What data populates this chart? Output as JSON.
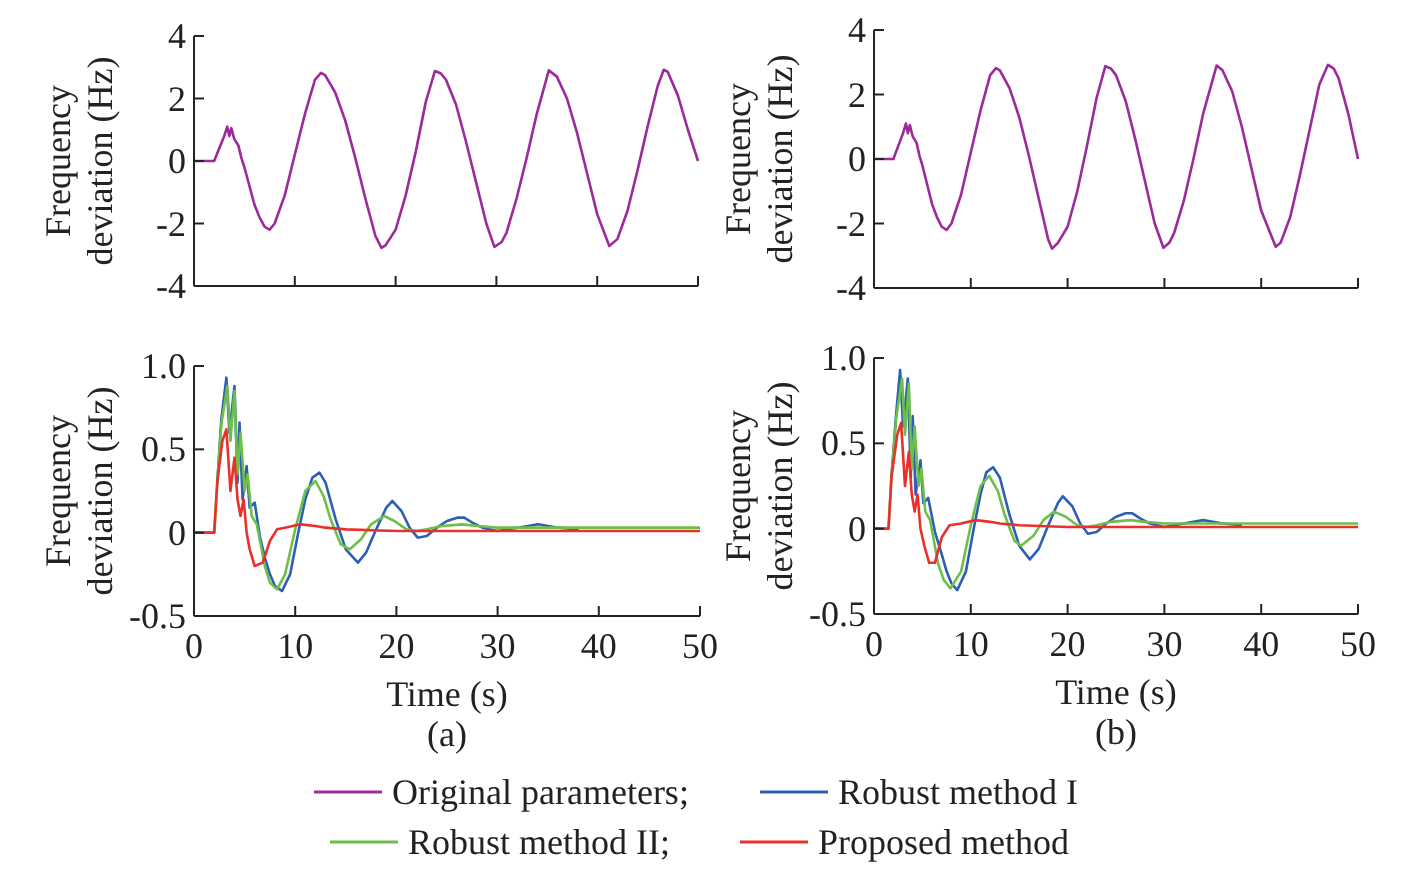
{
  "chart_data": [
    {
      "type": "line",
      "ylabel": "Frequency deviation (Hz)",
      "xlim": [
        0,
        50
      ],
      "xticks": [
        {
          "value": 0,
          "label": null
        },
        {
          "value": 10,
          "label": null
        },
        {
          "value": 20,
          "label": null
        },
        {
          "value": 30,
          "label": null
        },
        {
          "value": 40,
          "label": null
        },
        {
          "value": 50,
          "label": null
        }
      ],
      "ylim": [
        -4,
        4
      ],
      "yticks": [
        -4,
        -2,
        0,
        2,
        4
      ],
      "tick_labels": "y",
      "legend": "bottom",
      "grid": false,
      "series": [
        {
          "name": "Original parameters;",
          "color": "#9b2a9b",
          "x": [
            0,
            2,
            2.5,
            3,
            3.3,
            3.5,
            3.7,
            4,
            4.2,
            4.4,
            4.7,
            5,
            5.5,
            6,
            6.5,
            7,
            7.5,
            8,
            9,
            10,
            11,
            12,
            12.6,
            13,
            14,
            15,
            16,
            17,
            18,
            18.6,
            19,
            20,
            21,
            22,
            23,
            23.9,
            24.5,
            25,
            26,
            27,
            28,
            29,
            29.8,
            30.5,
            31,
            32,
            33,
            34,
            35.2,
            36,
            37,
            38,
            39,
            40,
            41.2,
            42,
            43,
            44,
            45,
            46,
            46.6,
            47,
            48,
            49,
            50
          ],
          "values": [
            0,
            0,
            0.4,
            0.8,
            1.1,
            0.8,
            1.05,
            0.7,
            0.6,
            0.5,
            0.1,
            -0.2,
            -0.8,
            -1.4,
            -1.8,
            -2.1,
            -2.2,
            -2.0,
            -1.1,
            0.2,
            1.5,
            2.6,
            2.82,
            2.75,
            2.2,
            1.3,
            0.1,
            -1.2,
            -2.4,
            -2.78,
            -2.7,
            -2.2,
            -1.1,
            0.3,
            1.9,
            2.88,
            2.8,
            2.6,
            1.8,
            0.6,
            -0.7,
            -2.0,
            -2.75,
            -2.6,
            -2.3,
            -1.2,
            0.1,
            1.5,
            2.9,
            2.7,
            2.0,
            0.9,
            -0.4,
            -1.7,
            -2.72,
            -2.5,
            -1.6,
            -0.3,
            1.1,
            2.4,
            2.92,
            2.85,
            2.1,
            1.0,
            0
          ]
        }
      ]
    },
    {
      "type": "line",
      "xlabel": "Time (s)",
      "ylabel": "Frequency deviation (Hz)",
      "annotations": [
        "(a)"
      ],
      "xlim": [
        0,
        50
      ],
      "xticks": [
        0,
        10,
        20,
        30,
        40,
        50
      ],
      "ylim": [
        -0.5,
        1
      ],
      "yticks": [
        -0.5,
        0,
        0.5,
        {
          "value": 1,
          "label": "1.0"
        }
      ],
      "legend": "bottom",
      "grid": false,
      "series": [
        {
          "name": "Robust method I",
          "color": "#2e5fb5",
          "x": [
            2.3,
            2.7,
            3.2,
            3.5,
            4,
            4.3,
            4.5,
            4.8,
            5.2,
            5.5,
            6,
            6.5,
            7,
            7.5,
            8,
            8.7,
            9.5,
            10.3,
            11,
            11.7,
            12.4,
            13,
            14,
            15,
            16.2,
            17,
            18,
            19,
            19.6,
            20.5,
            21.3,
            22.1,
            23,
            24,
            25,
            26,
            26.7,
            27.5,
            28.5,
            30,
            32,
            34,
            36,
            38
          ],
          "values": [
            0.3,
            0.68,
            0.93,
            0.6,
            0.88,
            0.3,
            0.66,
            0.2,
            0.4,
            0.15,
            0.18,
            -0.02,
            -0.15,
            -0.25,
            -0.32,
            -0.35,
            -0.25,
            0,
            0.2,
            0.33,
            0.36,
            0.3,
            0.08,
            -0.1,
            -0.18,
            -0.12,
            0.02,
            0.15,
            0.19,
            0.13,
            0.03,
            -0.03,
            -0.02,
            0.03,
            0.07,
            0.09,
            0.09,
            0.06,
            0.03,
            0.01,
            0.03,
            0.05,
            0.03,
            0.02
          ]
        },
        {
          "name": "Robust method II;",
          "color": "#6cc04a",
          "x": [
            0,
            2,
            2.3,
            2.7,
            3.3,
            3.6,
            4,
            4.3,
            4.6,
            5,
            5.3,
            5.7,
            6.2,
            7,
            7.5,
            8.2,
            9,
            10,
            11,
            12,
            12.8,
            13.5,
            14.5,
            15.4,
            16.5,
            17.5,
            18.8,
            19.8,
            21,
            22,
            23,
            24.5,
            26.5,
            28,
            30,
            35,
            40,
            45,
            50
          ],
          "values": [
            0,
            0,
            0.3,
            0.65,
            0.88,
            0.55,
            0.85,
            0.35,
            0.6,
            0.25,
            0.35,
            0.1,
            0.05,
            -0.2,
            -0.3,
            -0.34,
            -0.25,
            0.02,
            0.25,
            0.31,
            0.22,
            0.08,
            -0.07,
            -0.1,
            -0.04,
            0.05,
            0.1,
            0.07,
            0.02,
            0.01,
            0.02,
            0.04,
            0.05,
            0.04,
            0.03,
            0.03,
            0.03,
            0.03,
            0.03
          ]
        },
        {
          "name": "Proposed method",
          "color": "#e8312a",
          "x": [
            0,
            2,
            2.3,
            2.8,
            3.2,
            3.6,
            4,
            4.3,
            4.6,
            4.9,
            5.2,
            5.5,
            6,
            6.8,
            7.5,
            8.2,
            9,
            10.5,
            12,
            13,
            15,
            20,
            25,
            30,
            40,
            50
          ],
          "values": [
            0,
            0,
            0.3,
            0.55,
            0.62,
            0.25,
            0.45,
            0.2,
            0.1,
            0.2,
            0,
            -0.1,
            -0.2,
            -0.18,
            -0.05,
            0.02,
            0.03,
            0.05,
            0.04,
            0.03,
            0.02,
            0.01,
            0.01,
            0.01,
            0.01,
            0.01
          ]
        }
      ]
    },
    {
      "type": "line",
      "ylabel": "Frequency deviation (Hz)",
      "xlim": [
        0,
        50
      ],
      "xticks": [
        {
          "value": 0,
          "label": null
        },
        {
          "value": 10,
          "label": null
        },
        {
          "value": 20,
          "label": null
        },
        {
          "value": 30,
          "label": null
        },
        {
          "value": 40,
          "label": null
        },
        {
          "value": 50,
          "label": null
        }
      ],
      "ylim": [
        -4,
        4
      ],
      "yticks": [
        -4,
        -2,
        0,
        2,
        4
      ],
      "tick_labels": "y",
      "legend": "bottom",
      "grid": false,
      "series": [
        {
          "name": "Original parameters;",
          "color": "#9b2a9b",
          "x": [
            0,
            2,
            2.5,
            3,
            3.3,
            3.5,
            3.7,
            4,
            4.2,
            4.4,
            4.7,
            5,
            5.5,
            6,
            6.5,
            7,
            7.5,
            8,
            9,
            10,
            11,
            12,
            12.6,
            13,
            14,
            15,
            16,
            17,
            18,
            18.4,
            19,
            20,
            21,
            22,
            23,
            23.9,
            24.5,
            25,
            26,
            27,
            28,
            29,
            29.9,
            30.5,
            31,
            32,
            33,
            34,
            35.4,
            36,
            37,
            38,
            39,
            40,
            41.5,
            42,
            43,
            44,
            45,
            46,
            46.9,
            47.5,
            48,
            49,
            50
          ],
          "values": [
            0,
            0,
            0.4,
            0.8,
            1.1,
            0.8,
            1.05,
            0.7,
            0.6,
            0.5,
            0.1,
            -0.2,
            -0.8,
            -1.4,
            -1.8,
            -2.1,
            -2.2,
            -2.0,
            -1.1,
            0.2,
            1.5,
            2.6,
            2.82,
            2.75,
            2.2,
            1.3,
            0.1,
            -1.2,
            -2.5,
            -2.78,
            -2.6,
            -2.1,
            -1.0,
            0.4,
            1.9,
            2.88,
            2.8,
            2.6,
            1.8,
            0.6,
            -0.7,
            -2.0,
            -2.75,
            -2.6,
            -2.3,
            -1.3,
            0,
            1.4,
            2.9,
            2.75,
            2.1,
            1.0,
            -0.3,
            -1.6,
            -2.72,
            -2.6,
            -1.8,
            -0.5,
            0.9,
            2.3,
            2.92,
            2.8,
            2.5,
            1.4,
            0
          ]
        }
      ]
    },
    {
      "type": "line",
      "xlabel": "Time (s)",
      "ylabel": "Frequency deviation (Hz)",
      "annotations": [
        "(b)"
      ],
      "xlim": [
        0,
        50
      ],
      "xticks": [
        0,
        10,
        20,
        30,
        40,
        50
      ],
      "ylim": [
        -0.5,
        1
      ],
      "yticks": [
        -0.5,
        0,
        0.5,
        {
          "value": 1,
          "label": "1.0"
        }
      ],
      "legend": "bottom",
      "grid": false,
      "series": [
        {
          "name": "Robust method I",
          "color": "#2e5fb5",
          "x": [
            1.8,
            2.3,
            2.7,
            3,
            3.5,
            3.8,
            4,
            4.3,
            4.8,
            5.1,
            5.6,
            6.3,
            7,
            7.5,
            8,
            8.6,
            9.5,
            10.3,
            11,
            11.6,
            12.3,
            13,
            14,
            15,
            16.1,
            17,
            18,
            19,
            19.5,
            20.5,
            21.3,
            22.1,
            23,
            24,
            25,
            26,
            26.7,
            27.5,
            28.5,
            30,
            32,
            34,
            36,
            38
          ],
          "values": [
            0.3,
            0.68,
            0.93,
            0.6,
            0.88,
            0.3,
            0.66,
            0.2,
            0.4,
            0.15,
            0.18,
            -0.02,
            -0.15,
            -0.25,
            -0.32,
            -0.36,
            -0.25,
            0,
            0.2,
            0.33,
            0.36,
            0.3,
            0.08,
            -0.1,
            -0.18,
            -0.12,
            0.02,
            0.15,
            0.19,
            0.13,
            0.03,
            -0.03,
            -0.02,
            0.03,
            0.07,
            0.09,
            0.09,
            0.06,
            0.03,
            0.01,
            0.03,
            0.05,
            0.03,
            0.02
          ]
        },
        {
          "name": "Robust method II;",
          "color": "#6cc04a",
          "x": [
            0,
            1.5,
            1.8,
            2.3,
            2.9,
            3.2,
            3.6,
            3.9,
            4.2,
            4.6,
            4.9,
            5.3,
            5.8,
            6.6,
            7.2,
            7.9,
            9,
            10,
            11,
            11.9,
            12.8,
            13.5,
            14.5,
            15.2,
            16.5,
            17.5,
            18.6,
            19.8,
            21,
            22,
            23,
            24.5,
            26.5,
            28,
            30,
            35,
            40,
            45,
            50
          ],
          "values": [
            0,
            0,
            0.3,
            0.65,
            0.88,
            0.55,
            0.85,
            0.35,
            0.6,
            0.25,
            0.35,
            0.1,
            0.05,
            -0.2,
            -0.3,
            -0.35,
            -0.25,
            0.02,
            0.25,
            0.31,
            0.22,
            0.08,
            -0.07,
            -0.1,
            -0.04,
            0.05,
            0.1,
            0.07,
            0.02,
            0.01,
            0.02,
            0.04,
            0.05,
            0.04,
            0.03,
            0.03,
            0.03,
            0.03,
            0.03
          ]
        },
        {
          "name": "Proposed method",
          "color": "#e8312a",
          "x": [
            0,
            1.5,
            1.8,
            2.4,
            2.8,
            3.2,
            3.6,
            3.9,
            4.2,
            4.5,
            4.8,
            5.2,
            5.7,
            6.3,
            7,
            7.8,
            9,
            10.5,
            12,
            13,
            15,
            20,
            25,
            30,
            40,
            50
          ],
          "values": [
            0,
            0,
            0.3,
            0.55,
            0.62,
            0.25,
            0.45,
            0.2,
            0.1,
            0.2,
            0,
            -0.1,
            -0.2,
            -0.2,
            -0.05,
            0.02,
            0.03,
            0.05,
            0.04,
            0.03,
            0.02,
            0.01,
            0.01,
            0.01,
            0.01,
            0.01
          ]
        }
      ]
    }
  ]
}
